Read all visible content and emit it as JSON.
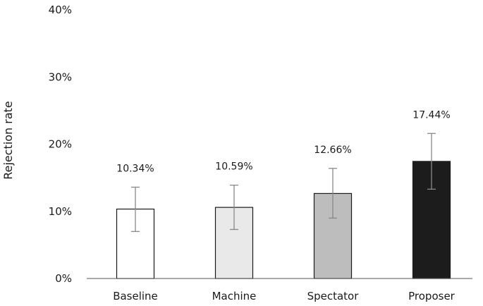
{
  "chart_data": {
    "type": "bar",
    "ylabel": "Rejection rate",
    "xlabel": "",
    "ylim": [
      0,
      40
    ],
    "yticks": [
      0,
      10,
      20,
      30,
      40
    ],
    "ytick_labels": [
      "0%",
      "10%",
      "20%",
      "30%",
      "40%"
    ],
    "grid": false,
    "categories": [
      "Baseline",
      "Machine",
      "Spectator",
      "Proposer"
    ],
    "values": [
      10.34,
      10.59,
      12.66,
      17.44
    ],
    "data_labels": [
      "10.34%",
      "10.59%",
      "12.66%",
      "17.44%"
    ],
    "error_low": [
      7.0,
      7.3,
      9.0,
      13.3
    ],
    "error_high": [
      13.6,
      13.9,
      16.4,
      21.6
    ],
    "bar_colors": [
      "#ffffff",
      "#e9e9e9",
      "#bdbdbd",
      "#1c1c1c"
    ]
  }
}
